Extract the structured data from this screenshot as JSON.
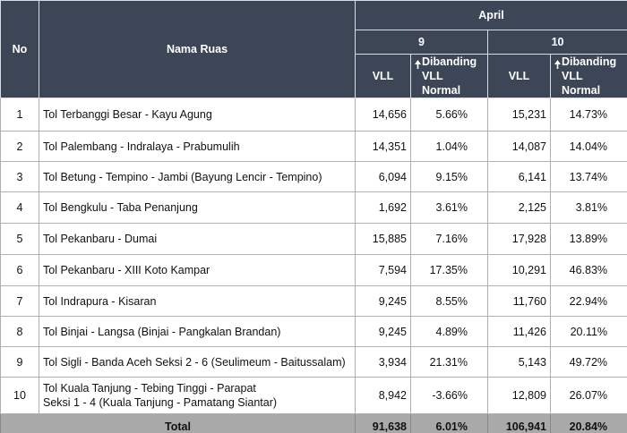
{
  "header": {
    "no": "No",
    "nama_ruas": "Nama Ruas",
    "period": "April",
    "days": [
      {
        "day": "9",
        "vll": "VLL",
        "dibanding": "Dibanding\nVLL Normal"
      },
      {
        "day": "10",
        "vll": "VLL",
        "dibanding": "Dibanding\nVLL Normal"
      }
    ]
  },
  "rows": [
    [
      "1",
      "Tol Terbanggi Besar - Kayu Agung",
      "14,656",
      "5.66%",
      "15,231",
      "14.73%"
    ],
    [
      "2",
      "Tol Palembang - Indralaya - Prabumulih",
      "14,351",
      "1.04%",
      "14,087",
      "14.04%"
    ],
    [
      "3",
      "Tol Betung - Tempino - Jambi (Bayung Lencir - Tempino)",
      "6,094",
      "9.15%",
      "6,141",
      "13.74%"
    ],
    [
      "4",
      "Tol Bengkulu - Taba Penanjung",
      "1,692",
      "3.61%",
      "2,125",
      "3.81%"
    ],
    [
      "5",
      "Tol Pekanbaru - Dumai",
      "15,885",
      "7.16%",
      "17,928",
      "13.89%"
    ],
    [
      "6",
      "Tol Pekanbaru  - XIII Koto Kampar",
      "7,594",
      "17.35%",
      "10,291",
      "46.83%"
    ],
    [
      "7",
      "Tol Indrapura - Kisaran",
      "9,245",
      "8.55%",
      "11,760",
      "22.94%"
    ],
    [
      "8",
      "Tol Binjai - Langsa (Binjai - Pangkalan Brandan)",
      "9,245",
      "4.89%",
      "11,426",
      "20.11%"
    ],
    [
      "9",
      "Tol Sigli - Banda Aceh Seksi 2 - 6 (Seulimeum - Baitussalam)",
      "3,934",
      "21.31%",
      "5,143",
      "49.72%"
    ],
    [
      "10",
      "Tol Kuala Tanjung - Tebing Tinggi - Parapat\nSeksi 1 - 4 (Kuala Tanjung - Pamatang Siantar)",
      "8,942",
      "-3.66%",
      "12,809",
      "26.07%"
    ]
  ],
  "total": [
    "Total",
    "91,638",
    "6.01%",
    "106,941",
    "20.84%"
  ]
}
